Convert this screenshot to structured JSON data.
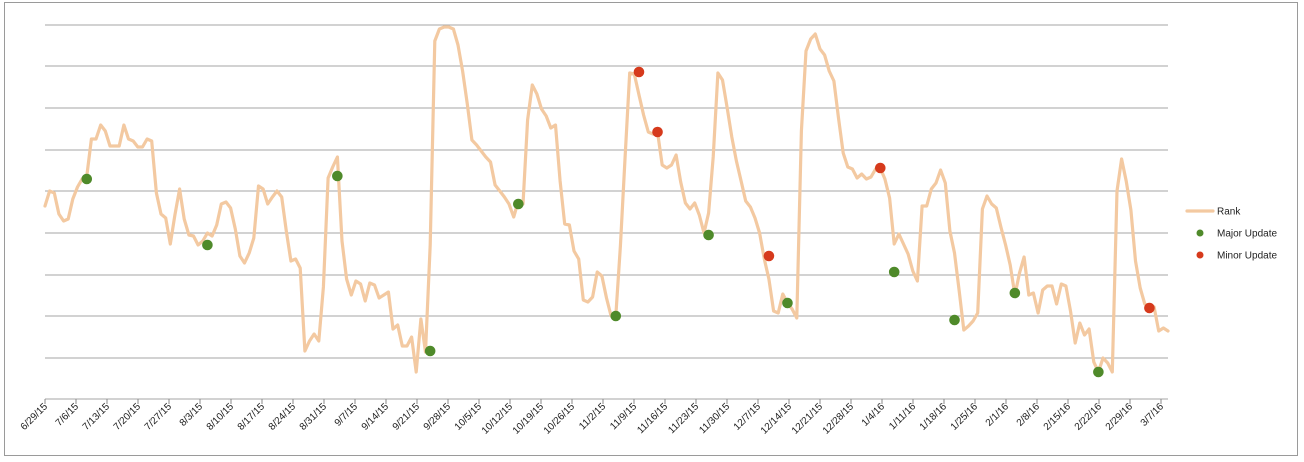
{
  "chart_data": {
    "type": "line",
    "title": "",
    "xlabel": "",
    "ylabel": "",
    "y_tick_labels": "none",
    "grid": "horizontal",
    "legend_position": "right",
    "x_tick_labels": [
      "6/29/15",
      "7/6/15",
      "7/13/15",
      "7/20/15",
      "7/27/15",
      "8/3/15",
      "8/10/15",
      "8/17/15",
      "8/24/15",
      "8/31/15",
      "9/7/15",
      "9/14/15",
      "9/21/15",
      "9/28/15",
      "10/5/15",
      "10/12/15",
      "10/19/15",
      "10/26/15",
      "11/2/15",
      "11/9/15",
      "11/16/15",
      "11/23/15",
      "11/30/15",
      "12/7/15",
      "12/14/15",
      "12/21/15",
      "12/28/15",
      "1/4/16",
      "1/11/16",
      "1/18/16",
      "1/25/16",
      "2/1/16",
      "2/8/16",
      "2/15/16",
      "2/22/16",
      "2/29/16",
      "3/7/16"
    ],
    "series": [
      {
        "name": "Rank",
        "color": "#f3c9a1",
        "points": [
          [
            0,
            205
          ],
          [
            1,
            190
          ],
          [
            2,
            192
          ],
          [
            3,
            213
          ],
          [
            4,
            220
          ],
          [
            5,
            218
          ],
          [
            6,
            198
          ],
          [
            7,
            186
          ],
          [
            8,
            178
          ],
          [
            9,
            175
          ],
          [
            10,
            138
          ],
          [
            11,
            138
          ],
          [
            12,
            124
          ],
          [
            13,
            130
          ],
          [
            14,
            145
          ],
          [
            15,
            145
          ],
          [
            16,
            145
          ],
          [
            17,
            124
          ],
          [
            18,
            138
          ],
          [
            19,
            140
          ],
          [
            20,
            146
          ],
          [
            21,
            146
          ],
          [
            22,
            138
          ],
          [
            23,
            140
          ],
          [
            24,
            192
          ],
          [
            25,
            213
          ],
          [
            26,
            217
          ],
          [
            27,
            243
          ],
          [
            28,
            214
          ],
          [
            29,
            188
          ],
          [
            30,
            218
          ],
          [
            31,
            234
          ],
          [
            32,
            235
          ],
          [
            33,
            244
          ],
          [
            34,
            240
          ],
          [
            35,
            232
          ],
          [
            36,
            235
          ],
          [
            37,
            224
          ],
          [
            38,
            203
          ],
          [
            39,
            201
          ],
          [
            40,
            207
          ],
          [
            41,
            228
          ],
          [
            42,
            255
          ],
          [
            43,
            262
          ],
          [
            44,
            252
          ],
          [
            45,
            237
          ],
          [
            46,
            185
          ],
          [
            47,
            188
          ],
          [
            48,
            203
          ],
          [
            49,
            196
          ],
          [
            50,
            190
          ],
          [
            51,
            196
          ],
          [
            52,
            230
          ],
          [
            53,
            260
          ],
          [
            54,
            258
          ],
          [
            55,
            267
          ],
          [
            56,
            350
          ],
          [
            57,
            340
          ],
          [
            58,
            333
          ],
          [
            59,
            340
          ],
          [
            60,
            286
          ],
          [
            61,
            177
          ],
          [
            62,
            166
          ],
          [
            63,
            156
          ],
          [
            64,
            240
          ],
          [
            65,
            278
          ],
          [
            66,
            294
          ],
          [
            67,
            280
          ],
          [
            68,
            283
          ],
          [
            69,
            300
          ],
          [
            70,
            282
          ],
          [
            71,
            284
          ],
          [
            72,
            297
          ],
          [
            73,
            294
          ],
          [
            74,
            291
          ],
          [
            75,
            328
          ],
          [
            76,
            324
          ],
          [
            77,
            345
          ],
          [
            78,
            345
          ],
          [
            79,
            336
          ],
          [
            80,
            371
          ],
          [
            81,
            318
          ],
          [
            82,
            351
          ],
          [
            83,
            244
          ],
          [
            84,
            40
          ],
          [
            85,
            28
          ],
          [
            86,
            26
          ],
          [
            87,
            26
          ],
          [
            88,
            28
          ],
          [
            89,
            44
          ],
          [
            90,
            70
          ],
          [
            91,
            103
          ],
          [
            92,
            139
          ],
          [
            93,
            144
          ],
          [
            94,
            150
          ],
          [
            95,
            156
          ],
          [
            96,
            161
          ],
          [
            97,
            184
          ],
          [
            98,
            190
          ],
          [
            99,
            196
          ],
          [
            100,
            203
          ],
          [
            101,
            216
          ],
          [
            102,
            200
          ],
          [
            103,
            203
          ],
          [
            104,
            119
          ],
          [
            105,
            84
          ],
          [
            106,
            93
          ],
          [
            107,
            108
          ],
          [
            108,
            115
          ],
          [
            109,
            127
          ],
          [
            110,
            124
          ],
          [
            111,
            180
          ],
          [
            112,
            223
          ],
          [
            113,
            224
          ],
          [
            114,
            250
          ],
          [
            115,
            258
          ],
          [
            116,
            299
          ],
          [
            117,
            301
          ],
          [
            118,
            296
          ],
          [
            119,
            271
          ],
          [
            120,
            275
          ],
          [
            121,
            297
          ],
          [
            122,
            315
          ],
          [
            123,
            315
          ],
          [
            124,
            245
          ],
          [
            125,
            156
          ],
          [
            126,
            72
          ],
          [
            127,
            73
          ],
          [
            128,
            94
          ],
          [
            129,
            114
          ],
          [
            130,
            131
          ],
          [
            131,
            133
          ],
          [
            132,
            131
          ],
          [
            133,
            164
          ],
          [
            134,
            167
          ],
          [
            135,
            164
          ],
          [
            136,
            154
          ],
          [
            137,
            181
          ],
          [
            138,
            202
          ],
          [
            139,
            208
          ],
          [
            140,
            202
          ],
          [
            141,
            214
          ],
          [
            142,
            232
          ],
          [
            143,
            212
          ],
          [
            144,
            156
          ],
          [
            145,
            72
          ],
          [
            146,
            79
          ],
          [
            147,
            107
          ],
          [
            148,
            136
          ],
          [
            149,
            160
          ],
          [
            150,
            180
          ],
          [
            151,
            200
          ],
          [
            152,
            206
          ],
          [
            153,
            217
          ],
          [
            154,
            232
          ],
          [
            155,
            258
          ],
          [
            156,
            278
          ],
          [
            157,
            310
          ],
          [
            158,
            312
          ],
          [
            159,
            293
          ],
          [
            160,
            302
          ],
          [
            161,
            308
          ],
          [
            162,
            317
          ],
          [
            163,
            130
          ],
          [
            164,
            50
          ],
          [
            165,
            38
          ],
          [
            166,
            33
          ],
          [
            167,
            48
          ],
          [
            168,
            54
          ],
          [
            169,
            70
          ],
          [
            170,
            80
          ],
          [
            171,
            117
          ],
          [
            172,
            152
          ],
          [
            173,
            166
          ],
          [
            174,
            168
          ],
          [
            175,
            177
          ],
          [
            176,
            173
          ],
          [
            177,
            178
          ],
          [
            178,
            176
          ],
          [
            179,
            168
          ],
          [
            180,
            167
          ],
          [
            181,
            178
          ],
          [
            182,
            197
          ],
          [
            183,
            243
          ],
          [
            184,
            233
          ],
          [
            185,
            243
          ],
          [
            186,
            253
          ],
          [
            187,
            270
          ],
          [
            188,
            280
          ],
          [
            189,
            205
          ],
          [
            190,
            205
          ],
          [
            191,
            188
          ],
          [
            192,
            182
          ],
          [
            193,
            169
          ],
          [
            194,
            182
          ],
          [
            195,
            230
          ],
          [
            196,
            252
          ],
          [
            197,
            290
          ],
          [
            198,
            329
          ],
          [
            199,
            325
          ],
          [
            200,
            320
          ],
          [
            201,
            312
          ],
          [
            202,
            208
          ],
          [
            203,
            195
          ],
          [
            204,
            203
          ],
          [
            205,
            207
          ],
          [
            206,
            226
          ],
          [
            207,
            244
          ],
          [
            208,
            264
          ],
          [
            209,
            294
          ],
          [
            210,
            272
          ],
          [
            211,
            256
          ],
          [
            212,
            294
          ],
          [
            213,
            292
          ],
          [
            214,
            312
          ],
          [
            215,
            289
          ],
          [
            216,
            285
          ],
          [
            217,
            285
          ],
          [
            218,
            303
          ],
          [
            219,
            283
          ],
          [
            220,
            285
          ],
          [
            221,
            310
          ],
          [
            222,
            342
          ],
          [
            223,
            322
          ],
          [
            224,
            334
          ],
          [
            225,
            328
          ],
          [
            226,
            361
          ],
          [
            227,
            371
          ],
          [
            228,
            357
          ],
          [
            229,
            362
          ],
          [
            230,
            371
          ],
          [
            231,
            190
          ],
          [
            232,
            158
          ],
          [
            233,
            180
          ],
          [
            234,
            209
          ],
          [
            235,
            260
          ],
          [
            236,
            287
          ],
          [
            237,
            303
          ],
          [
            238,
            305
          ],
          [
            239,
            306
          ],
          [
            240,
            330
          ],
          [
            241,
            327
          ],
          [
            242,
            330
          ]
        ]
      },
      {
        "name": "Major Update",
        "color": "#4f8a2a",
        "type": "scatter",
        "points": [
          [
            9,
            178
          ],
          [
            35,
            244
          ],
          [
            63,
            175
          ],
          [
            83,
            350
          ],
          [
            102,
            203
          ],
          [
            123,
            315
          ],
          [
            143,
            234
          ],
          [
            160,
            302
          ],
          [
            183,
            271
          ],
          [
            196,
            319
          ],
          [
            209,
            292
          ],
          [
            227,
            371
          ]
        ]
      },
      {
        "name": "Minor Update",
        "color": "#d63a1c",
        "type": "scatter",
        "points": [
          [
            128,
            71
          ],
          [
            132,
            131
          ],
          [
            156,
            255
          ],
          [
            180,
            167
          ],
          [
            238,
            307
          ]
        ]
      }
    ]
  }
}
